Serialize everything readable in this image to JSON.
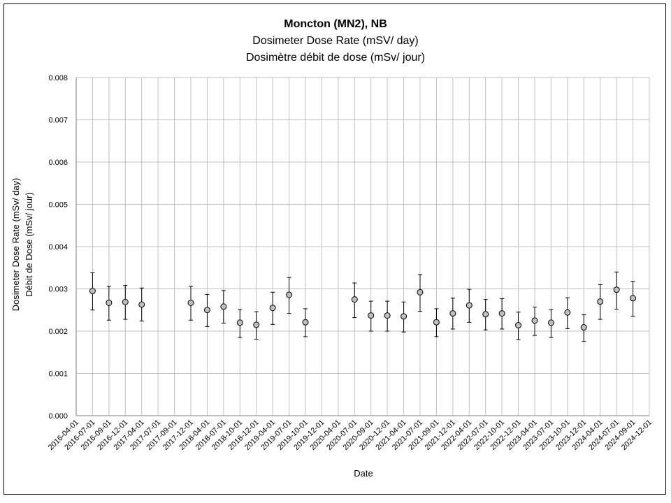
{
  "chart_data": {
    "type": "scatter",
    "title": "Moncton (MN2), NB",
    "subtitle_en": "Dosimeter Dose Rate (mSV/ day)",
    "subtitle_fr": "Dosimètre débit de dose (mSv/ jour)",
    "xlabel": "Date",
    "ylabel_en": "Dosimeter Dose Rate (mSv/ day)",
    "ylabel_fr": "Débit de Dose (mSv/ jour)",
    "ylim": [
      0,
      0.008
    ],
    "yticks": [
      "0.000",
      "0.001",
      "0.002",
      "0.003",
      "0.004",
      "0.005",
      "0.006",
      "0.007",
      "0.008"
    ],
    "categories": [
      "2016-04-01",
      "2016-07-01",
      "2016-09-01",
      "2016-12-01",
      "2017-04-01",
      "2017-07-01",
      "2017-09-01",
      "2017-12-01",
      "2018-04-01",
      "2018-07-01",
      "2018-10-01",
      "2018-12-01",
      "2019-04-01",
      "2019-07-01",
      "2019-10-01",
      "2019-12-01",
      "2020-04-01",
      "2020-07-01",
      "2020-09-01",
      "2020-12-01",
      "2021-04-01",
      "2021-07-01",
      "2021-09-01",
      "2021-12-01",
      "2022-04-01",
      "2022-07-01",
      "2022-10-01",
      "2022-12-01",
      "2023-04-01",
      "2023-07-01",
      "2023-10-01",
      "2023-12-01",
      "2024-04-01",
      "2024-07-01",
      "2024-09-01",
      "2024-12-01"
    ],
    "grid": true,
    "legend": "none",
    "points": [
      {
        "x": "2016-07-01",
        "y": 0.00295,
        "lo": 0.0025,
        "hi": 0.00338
      },
      {
        "x": "2016-09-01",
        "y": 0.00267,
        "lo": 0.00226,
        "hi": 0.00306
      },
      {
        "x": "2016-12-01",
        "y": 0.00269,
        "lo": 0.00228,
        "hi": 0.00308
      },
      {
        "x": "2017-04-01",
        "y": 0.00263,
        "lo": 0.00224,
        "hi": 0.00302
      },
      {
        "x": "2017-12-01",
        "y": 0.00267,
        "lo": 0.00226,
        "hi": 0.00306
      },
      {
        "x": "2018-04-01",
        "y": 0.0025,
        "lo": 0.00211,
        "hi": 0.00287
      },
      {
        "x": "2018-07-01",
        "y": 0.00258,
        "lo": 0.00219,
        "hi": 0.00296
      },
      {
        "x": "2018-10-01",
        "y": 0.0022,
        "lo": 0.00185,
        "hi": 0.00251
      },
      {
        "x": "2018-12-01",
        "y": 0.00215,
        "lo": 0.00181,
        "hi": 0.00246
      },
      {
        "x": "2019-04-01",
        "y": 0.00255,
        "lo": 0.00216,
        "hi": 0.00292
      },
      {
        "x": "2019-07-01",
        "y": 0.00286,
        "lo": 0.00242,
        "hi": 0.00327
      },
      {
        "x": "2019-10-01",
        "y": 0.00221,
        "lo": 0.00187,
        "hi": 0.00253
      },
      {
        "x": "2020-07-01",
        "y": 0.00275,
        "lo": 0.00232,
        "hi": 0.00314
      },
      {
        "x": "2020-09-01",
        "y": 0.00237,
        "lo": 0.002,
        "hi": 0.00271
      },
      {
        "x": "2020-12-01",
        "y": 0.00237,
        "lo": 0.002,
        "hi": 0.00271
      },
      {
        "x": "2021-04-01",
        "y": 0.00235,
        "lo": 0.00198,
        "hi": 0.00269
      },
      {
        "x": "2021-07-01",
        "y": 0.00292,
        "lo": 0.00247,
        "hi": 0.00334
      },
      {
        "x": "2021-09-01",
        "y": 0.00221,
        "lo": 0.00187,
        "hi": 0.00253
      },
      {
        "x": "2021-12-01",
        "y": 0.00242,
        "lo": 0.00205,
        "hi": 0.00278
      },
      {
        "x": "2022-04-01",
        "y": 0.00261,
        "lo": 0.00221,
        "hi": 0.00299
      },
      {
        "x": "2022-07-01",
        "y": 0.0024,
        "lo": 0.00203,
        "hi": 0.00275
      },
      {
        "x": "2022-10-01",
        "y": 0.00242,
        "lo": 0.00205,
        "hi": 0.00277
      },
      {
        "x": "2022-12-01",
        "y": 0.00214,
        "lo": 0.0018,
        "hi": 0.00245
      },
      {
        "x": "2023-04-01",
        "y": 0.00225,
        "lo": 0.0019,
        "hi": 0.00257
      },
      {
        "x": "2023-07-01",
        "y": 0.0022,
        "lo": 0.00185,
        "hi": 0.00251
      },
      {
        "x": "2023-10-01",
        "y": 0.00244,
        "lo": 0.00206,
        "hi": 0.00279
      },
      {
        "x": "2023-12-01",
        "y": 0.00209,
        "lo": 0.00176,
        "hi": 0.00239
      },
      {
        "x": "2024-04-01",
        "y": 0.0027,
        "lo": 0.00228,
        "hi": 0.0031
      },
      {
        "x": "2024-07-01",
        "y": 0.00298,
        "lo": 0.00252,
        "hi": 0.0034
      },
      {
        "x": "2024-09-01",
        "y": 0.00278,
        "lo": 0.00235,
        "hi": 0.00318
      }
    ],
    "colors": {
      "marker_fill": "#bfbfbf",
      "marker_stroke": "#000000",
      "grid": "#bfbfbf",
      "error_bar": "#000000"
    }
  }
}
